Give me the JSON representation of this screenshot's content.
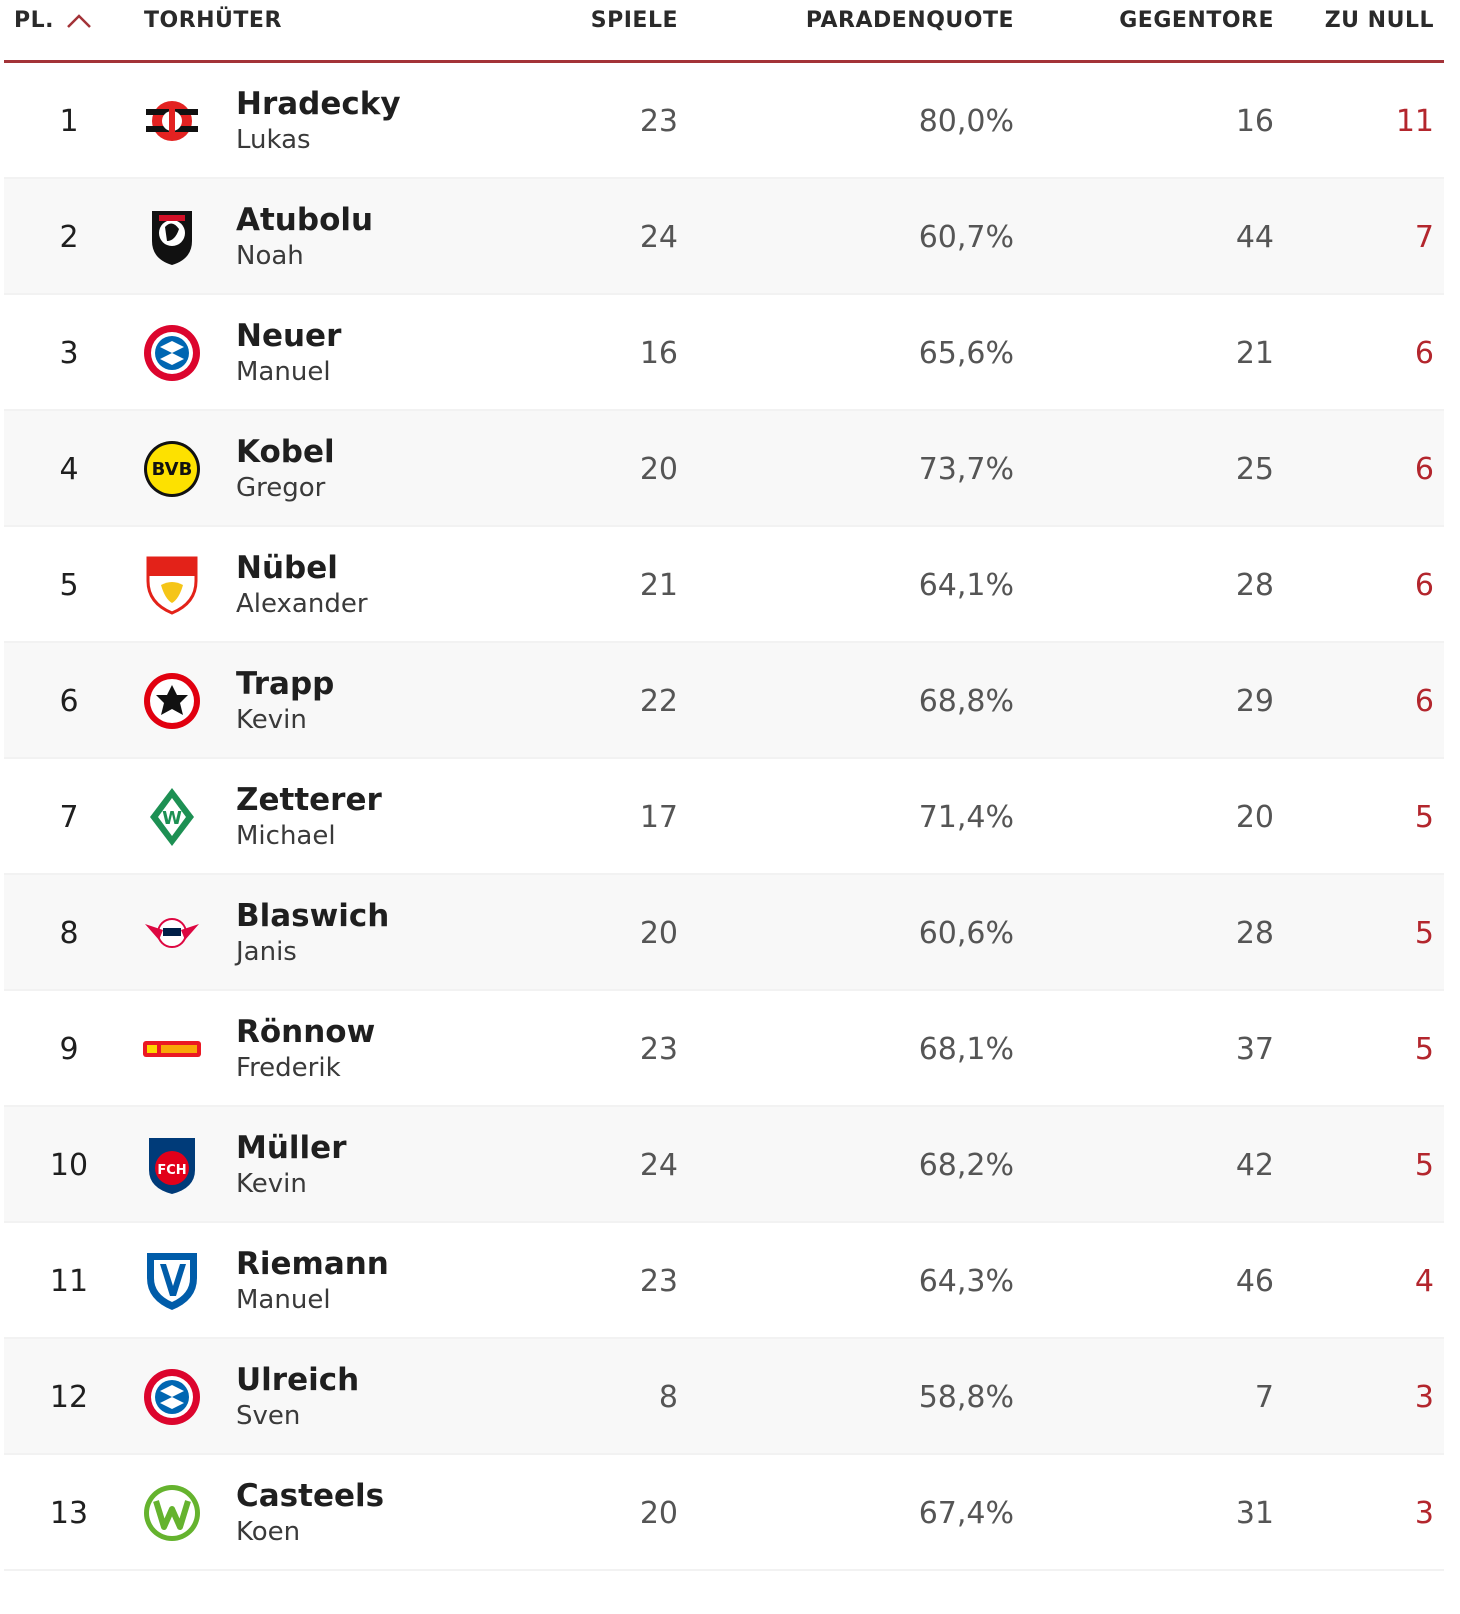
{
  "header": {
    "pos": "PL.",
    "keeper": "TORHÜTER",
    "games": "SPIELE",
    "save_rate": "PARADENQUOTE",
    "conceded": "GEGENTORE",
    "clean_sheets": "ZU NULL",
    "sort_icon": "chevron-up-icon"
  },
  "colors": {
    "accent": "#a33338",
    "clean_sheet_text": "#b3262d"
  },
  "rows": [
    {
      "pos": "1",
      "last": "Hradecky",
      "first": "Lukas",
      "games": "23",
      "save_rate": "80,0%",
      "conceded": "16",
      "clean_sheets": "11",
      "club_logo": "leverkusen-crest-icon"
    },
    {
      "pos": "2",
      "last": "Atubolu",
      "first": "Noah",
      "games": "24",
      "save_rate": "60,7%",
      "conceded": "44",
      "clean_sheets": "7",
      "club_logo": "freiburg-crest-icon"
    },
    {
      "pos": "3",
      "last": "Neuer",
      "first": "Manuel",
      "games": "16",
      "save_rate": "65,6%",
      "conceded": "21",
      "clean_sheets": "6",
      "club_logo": "bayern-crest-icon"
    },
    {
      "pos": "4",
      "last": "Kobel",
      "first": "Gregor",
      "games": "20",
      "save_rate": "73,7%",
      "conceded": "25",
      "clean_sheets": "6",
      "club_logo": "dortmund-crest-icon"
    },
    {
      "pos": "5",
      "last": "Nübel",
      "first": "Alexander",
      "games": "21",
      "save_rate": "64,1%",
      "conceded": "28",
      "clean_sheets": "6",
      "club_logo": "stuttgart-crest-icon"
    },
    {
      "pos": "6",
      "last": "Trapp",
      "first": "Kevin",
      "games": "22",
      "save_rate": "68,8%",
      "conceded": "29",
      "clean_sheets": "6",
      "club_logo": "frankfurt-crest-icon"
    },
    {
      "pos": "7",
      "last": "Zetterer",
      "first": "Michael",
      "games": "17",
      "save_rate": "71,4%",
      "conceded": "20",
      "clean_sheets": "5",
      "club_logo": "bremen-crest-icon"
    },
    {
      "pos": "8",
      "last": "Blaswich",
      "first": "Janis",
      "games": "20",
      "save_rate": "60,6%",
      "conceded": "28",
      "clean_sheets": "5",
      "club_logo": "leipzig-crest-icon"
    },
    {
      "pos": "9",
      "last": "Rönnow",
      "first": "Frederik",
      "games": "23",
      "save_rate": "68,1%",
      "conceded": "37",
      "clean_sheets": "5",
      "club_logo": "union-berlin-crest-icon"
    },
    {
      "pos": "10",
      "last": "Müller",
      "first": "Kevin",
      "games": "24",
      "save_rate": "68,2%",
      "conceded": "42",
      "clean_sheets": "5",
      "club_logo": "heidenheim-crest-icon"
    },
    {
      "pos": "11",
      "last": "Riemann",
      "first": "Manuel",
      "games": "23",
      "save_rate": "64,3%",
      "conceded": "46",
      "clean_sheets": "4",
      "club_logo": "bochum-crest-icon"
    },
    {
      "pos": "12",
      "last": "Ulreich",
      "first": "Sven",
      "games": "8",
      "save_rate": "58,8%",
      "conceded": "7",
      "clean_sheets": "3",
      "club_logo": "bayern-crest-icon"
    },
    {
      "pos": "13",
      "last": "Casteels",
      "first": "Koen",
      "games": "20",
      "save_rate": "67,4%",
      "conceded": "31",
      "clean_sheets": "3",
      "club_logo": "wolfsburg-crest-icon"
    }
  ]
}
